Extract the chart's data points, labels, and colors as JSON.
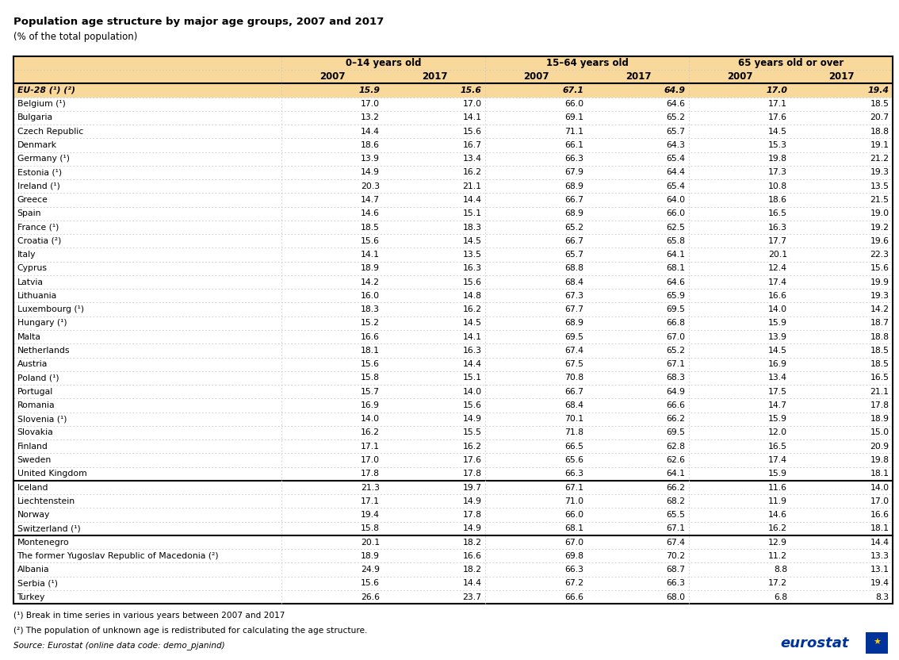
{
  "title": "Population age structure by major age groups, 2007 and 2017",
  "subtitle": "(% of the total population)",
  "col_groups": [
    "0–14 years old",
    "15–64 years old",
    "65 years old or over"
  ],
  "rows": [
    [
      "EU-28 (¹) (²)",
      15.9,
      15.6,
      67.1,
      64.9,
      17.0,
      19.4
    ],
    [
      "Belgium (¹)",
      17.0,
      17.0,
      66.0,
      64.6,
      17.1,
      18.5
    ],
    [
      "Bulgaria",
      13.2,
      14.1,
      69.1,
      65.2,
      17.6,
      20.7
    ],
    [
      "Czech Republic",
      14.4,
      15.6,
      71.1,
      65.7,
      14.5,
      18.8
    ],
    [
      "Denmark",
      18.6,
      16.7,
      66.1,
      64.3,
      15.3,
      19.1
    ],
    [
      "Germany (¹)",
      13.9,
      13.4,
      66.3,
      65.4,
      19.8,
      21.2
    ],
    [
      "Estonia (¹)",
      14.9,
      16.2,
      67.9,
      64.4,
      17.3,
      19.3
    ],
    [
      "Ireland (¹)",
      20.3,
      21.1,
      68.9,
      65.4,
      10.8,
      13.5
    ],
    [
      "Greece",
      14.7,
      14.4,
      66.7,
      64.0,
      18.6,
      21.5
    ],
    [
      "Spain",
      14.6,
      15.1,
      68.9,
      66.0,
      16.5,
      19.0
    ],
    [
      "France (¹)",
      18.5,
      18.3,
      65.2,
      62.5,
      16.3,
      19.2
    ],
    [
      "Croatia (²)",
      15.6,
      14.5,
      66.7,
      65.8,
      17.7,
      19.6
    ],
    [
      "Italy",
      14.1,
      13.5,
      65.7,
      64.1,
      20.1,
      22.3
    ],
    [
      "Cyprus",
      18.9,
      16.3,
      68.8,
      68.1,
      12.4,
      15.6
    ],
    [
      "Latvia",
      14.2,
      15.6,
      68.4,
      64.6,
      17.4,
      19.9
    ],
    [
      "Lithuania",
      16.0,
      14.8,
      67.3,
      65.9,
      16.6,
      19.3
    ],
    [
      "Luxembourg (¹)",
      18.3,
      16.2,
      67.7,
      69.5,
      14.0,
      14.2
    ],
    [
      "Hungary (¹)",
      15.2,
      14.5,
      68.9,
      66.8,
      15.9,
      18.7
    ],
    [
      "Malta",
      16.6,
      14.1,
      69.5,
      67.0,
      13.9,
      18.8
    ],
    [
      "Netherlands",
      18.1,
      16.3,
      67.4,
      65.2,
      14.5,
      18.5
    ],
    [
      "Austria",
      15.6,
      14.4,
      67.5,
      67.1,
      16.9,
      18.5
    ],
    [
      "Poland (¹)",
      15.8,
      15.1,
      70.8,
      68.3,
      13.4,
      16.5
    ],
    [
      "Portugal",
      15.7,
      14.0,
      66.7,
      64.9,
      17.5,
      21.1
    ],
    [
      "Romania",
      16.9,
      15.6,
      68.4,
      66.6,
      14.7,
      17.8
    ],
    [
      "Slovenia (¹)",
      14.0,
      14.9,
      70.1,
      66.2,
      15.9,
      18.9
    ],
    [
      "Slovakia",
      16.2,
      15.5,
      71.8,
      69.5,
      12.0,
      15.0
    ],
    [
      "Finland",
      17.1,
      16.2,
      66.5,
      62.8,
      16.5,
      20.9
    ],
    [
      "Sweden",
      17.0,
      17.6,
      65.6,
      62.6,
      17.4,
      19.8
    ],
    [
      "United Kingdom",
      17.8,
      17.8,
      66.3,
      64.1,
      15.9,
      18.1
    ],
    [
      "Iceland",
      21.3,
      19.7,
      67.1,
      66.2,
      11.6,
      14.0
    ],
    [
      "Liechtenstein",
      17.1,
      14.9,
      71.0,
      68.2,
      11.9,
      17.0
    ],
    [
      "Norway",
      19.4,
      17.8,
      66.0,
      65.5,
      14.6,
      16.6
    ],
    [
      "Switzerland (¹)",
      15.8,
      14.9,
      68.1,
      67.1,
      16.2,
      18.1
    ],
    [
      "Montenegro",
      20.1,
      18.2,
      67.0,
      67.4,
      12.9,
      14.4
    ],
    [
      "The former Yugoslav Republic of Macedonia (²)",
      18.9,
      16.6,
      69.8,
      70.2,
      11.2,
      13.3
    ],
    [
      "Albania",
      24.9,
      18.2,
      66.3,
      68.7,
      8.8,
      13.1
    ],
    [
      "Serbia (¹)",
      15.6,
      14.4,
      67.2,
      66.3,
      17.2,
      19.4
    ],
    [
      "Turkey",
      26.6,
      23.7,
      66.6,
      68.0,
      6.8,
      8.3
    ]
  ],
  "eu28_row": 0,
  "thick_after_data_rows": [
    28,
    32
  ],
  "footnotes": [
    "(¹) Break in time series in various years between 2007 and 2017",
    "(²) The population of unknown age is redistributed for calculating the age structure.",
    "Source: Eurostat (online data code: demo_pjanind)"
  ],
  "header_bg": "#F9D89C",
  "eu28_bg": "#F9D89C",
  "border_light_color": "#C8C8C8",
  "border_dark_color": "#000000",
  "text_color": "#000000",
  "fig_width": 11.34,
  "fig_height": 8.32,
  "dpi": 100
}
